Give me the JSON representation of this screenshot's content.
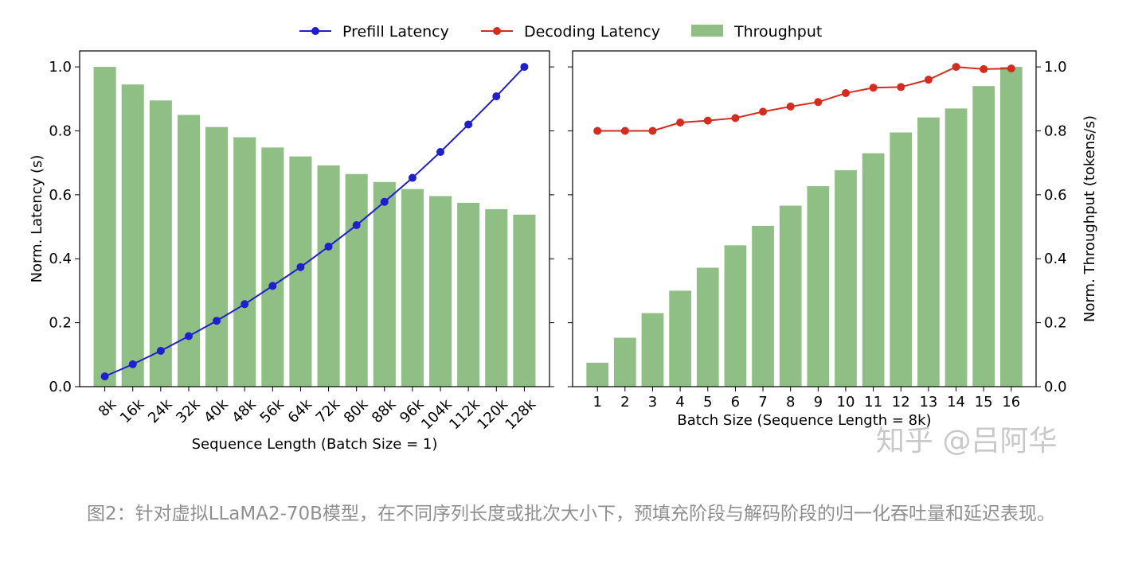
{
  "legend": [
    {
      "label": "Prefill Latency",
      "color": "#1f1fcc",
      "kind": "line"
    },
    {
      "label": "Decoding Latency",
      "color": "#d62c1f",
      "kind": "line"
    },
    {
      "label": "Throughput",
      "color": "#8fbf85",
      "kind": "bar"
    }
  ],
  "chart_data": [
    {
      "type": "bar+line",
      "xlabel": "Sequence Length (Batch Size = 1)",
      "ylabel": "Norm. Latency (s)",
      "ylim": [
        0,
        1.05
      ],
      "yticks": [
        "0.0",
        "0.2",
        "0.4",
        "0.6",
        "0.8",
        "1.0"
      ],
      "categories": [
        "8k",
        "16k",
        "24k",
        "32k",
        "40k",
        "48k",
        "56k",
        "64k",
        "72k",
        "80k",
        "88k",
        "96k",
        "104k",
        "112k",
        "120k",
        "128k"
      ],
      "series": [
        {
          "name": "Throughput",
          "kind": "bar",
          "color": "#8fbf85",
          "values": [
            1.0,
            0.945,
            0.895,
            0.85,
            0.812,
            0.78,
            0.748,
            0.72,
            0.692,
            0.665,
            0.64,
            0.618,
            0.596,
            0.575,
            0.555,
            0.538
          ]
        },
        {
          "name": "Prefill Latency",
          "kind": "line",
          "color": "#1f1fcc",
          "values": [
            0.032,
            0.07,
            0.112,
            0.158,
            0.206,
            0.258,
            0.315,
            0.374,
            0.438,
            0.505,
            0.578,
            0.653,
            0.734,
            0.82,
            0.908,
            1.0
          ]
        }
      ]
    },
    {
      "type": "bar+line",
      "xlabel": "Batch Size (Sequence Length = 8k)",
      "ylabel": "Norm. Throughput (tokens/s)",
      "ylim": [
        0,
        1.05
      ],
      "yticks": [
        "0.0",
        "0.2",
        "0.4",
        "0.6",
        "0.8",
        "1.0"
      ],
      "categories": [
        "1",
        "2",
        "3",
        "4",
        "5",
        "6",
        "7",
        "8",
        "9",
        "10",
        "11",
        "12",
        "13",
        "14",
        "15",
        "16"
      ],
      "series": [
        {
          "name": "Throughput",
          "kind": "bar",
          "color": "#8fbf85",
          "values": [
            0.075,
            0.153,
            0.23,
            0.3,
            0.372,
            0.442,
            0.503,
            0.566,
            0.627,
            0.677,
            0.73,
            0.795,
            0.842,
            0.87,
            0.94,
            1.0
          ]
        },
        {
          "name": "Decoding Latency",
          "kind": "line",
          "color": "#d62c1f",
          "values": [
            0.8,
            0.8,
            0.8,
            0.826,
            0.832,
            0.84,
            0.86,
            0.876,
            0.89,
            0.918,
            0.935,
            0.937,
            0.96,
            1.0,
            0.993,
            0.995
          ]
        }
      ]
    }
  ],
  "watermark": "知乎 @吕阿华",
  "caption": "图2：针对虚拟LLaMA2-70B模型，在不同序列长度或批次大小下，预填充阶段与解码阶段的归一化吞吐量和延迟表现。"
}
